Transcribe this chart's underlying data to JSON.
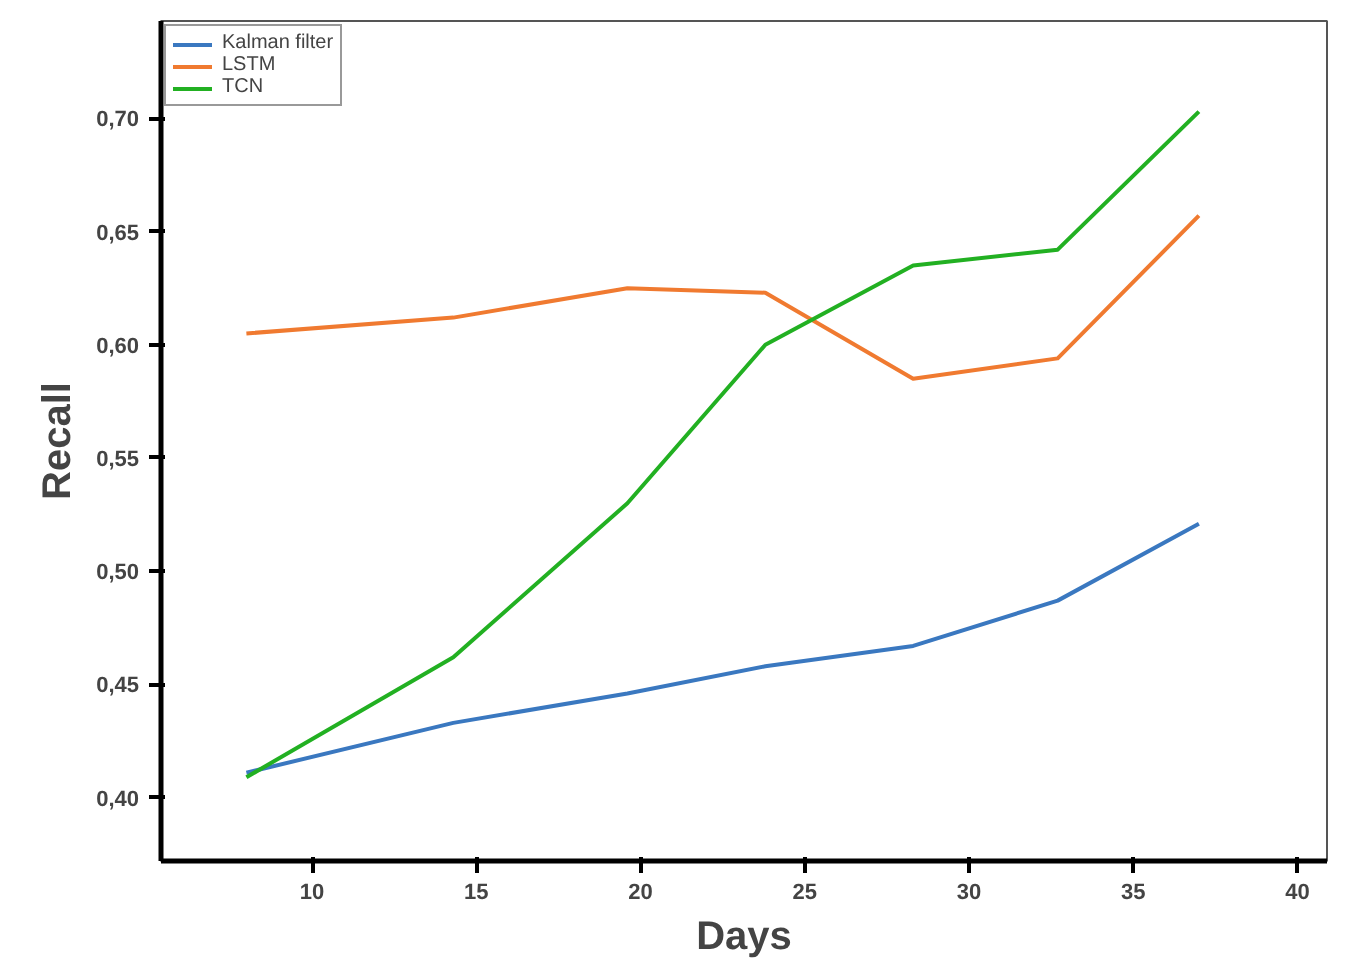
{
  "chart_data": {
    "type": "line",
    "xlabel": "Days",
    "ylabel": "Recall",
    "x": [
      8.0,
      14.3,
      19.6,
      23.8,
      28.3,
      32.7,
      37.0
    ],
    "series": [
      {
        "name": "Kalman filter",
        "color": "#3a78c0",
        "values": [
          0.411,
          0.433,
          0.446,
          0.458,
          0.467,
          0.487,
          0.521
        ]
      },
      {
        "name": "LSTM",
        "color": "#f07a30",
        "values": [
          0.605,
          0.612,
          0.625,
          0.623,
          0.585,
          0.594,
          0.657
        ]
      },
      {
        "name": "TCN",
        "color": "#22b022",
        "values": [
          0.409,
          0.462,
          0.53,
          0.6,
          0.635,
          0.642,
          0.703
        ]
      }
    ],
    "xlim": [
      5.4,
      40.9
    ],
    "ylim": [
      0.372,
      0.743
    ],
    "xticks": [
      10,
      15,
      20,
      25,
      30,
      35,
      40
    ],
    "yticks": [
      {
        "value": 0.4,
        "label": "0,40"
      },
      {
        "value": 0.45,
        "label": "0,45"
      },
      {
        "value": 0.5,
        "label": "0,50"
      },
      {
        "value": 0.55,
        "label": "0,55"
      },
      {
        "value": 0.6,
        "label": "0,60"
      },
      {
        "value": 0.65,
        "label": "0,65"
      },
      {
        "value": 0.7,
        "label": "0,70"
      }
    ],
    "grid": false,
    "legend": "top left",
    "marker": "none",
    "line_style": "solid"
  }
}
